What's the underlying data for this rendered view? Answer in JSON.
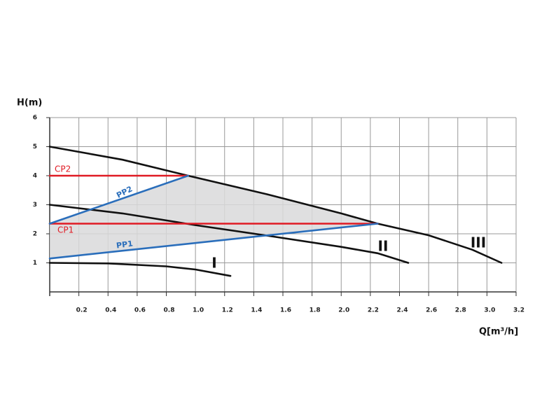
{
  "chart_data": {
    "type": "line",
    "y_label": "H(m)",
    "x_label": "Q[m³/h]",
    "xlim": [
      0,
      3.2
    ],
    "ylim": [
      0,
      6
    ],
    "xticks": [
      0.2,
      0.4,
      0.6,
      0.8,
      {
        "value": 1,
        "label": "1.0"
      },
      1.2,
      1.4,
      1.6,
      1.8,
      {
        "value": 2,
        "label": "2.0"
      },
      2.2,
      2.4,
      2.6,
      2.8,
      {
        "value": 3,
        "label": "3.0"
      },
      3.2
    ],
    "yticks": [
      1,
      2,
      3,
      4,
      5,
      6
    ],
    "grid": true,
    "series": [
      {
        "name": "III",
        "color": "#111111",
        "x": [
          0,
          0.5,
          0.95,
          1.5,
          2.0,
          2.25,
          2.6,
          2.9,
          3.1
        ],
        "values": [
          5,
          4.55,
          4.0,
          3.35,
          2.7,
          2.35,
          1.95,
          1.45,
          1.0
        ]
      },
      {
        "name": "II",
        "color": "#111111",
        "x": [
          0,
          0.5,
          1.0,
          1.5,
          2.0,
          2.25,
          2.46
        ],
        "values": [
          3,
          2.7,
          2.3,
          1.93,
          1.55,
          1.33,
          1.0
        ]
      },
      {
        "name": "I",
        "color": "#111111",
        "x": [
          0,
          0.4,
          0.8,
          1.0,
          1.24
        ],
        "values": [
          1,
          0.98,
          0.88,
          0.77,
          0.55
        ]
      },
      {
        "name": "CP2",
        "color": "#e01b24",
        "x": [
          0,
          0.95
        ],
        "values": [
          4,
          4
        ]
      },
      {
        "name": "CP1",
        "color": "#e01b24",
        "x": [
          0,
          2.25
        ],
        "values": [
          2.35,
          2.35
        ]
      },
      {
        "name": "PP2",
        "color": "#2a6ebb",
        "x": [
          0,
          0.95
        ],
        "values": [
          2.35,
          4
        ]
      },
      {
        "name": "PP1",
        "color": "#2a6ebb",
        "x": [
          0,
          2.25
        ],
        "values": [
          1.15,
          2.35
        ]
      }
    ]
  }
}
